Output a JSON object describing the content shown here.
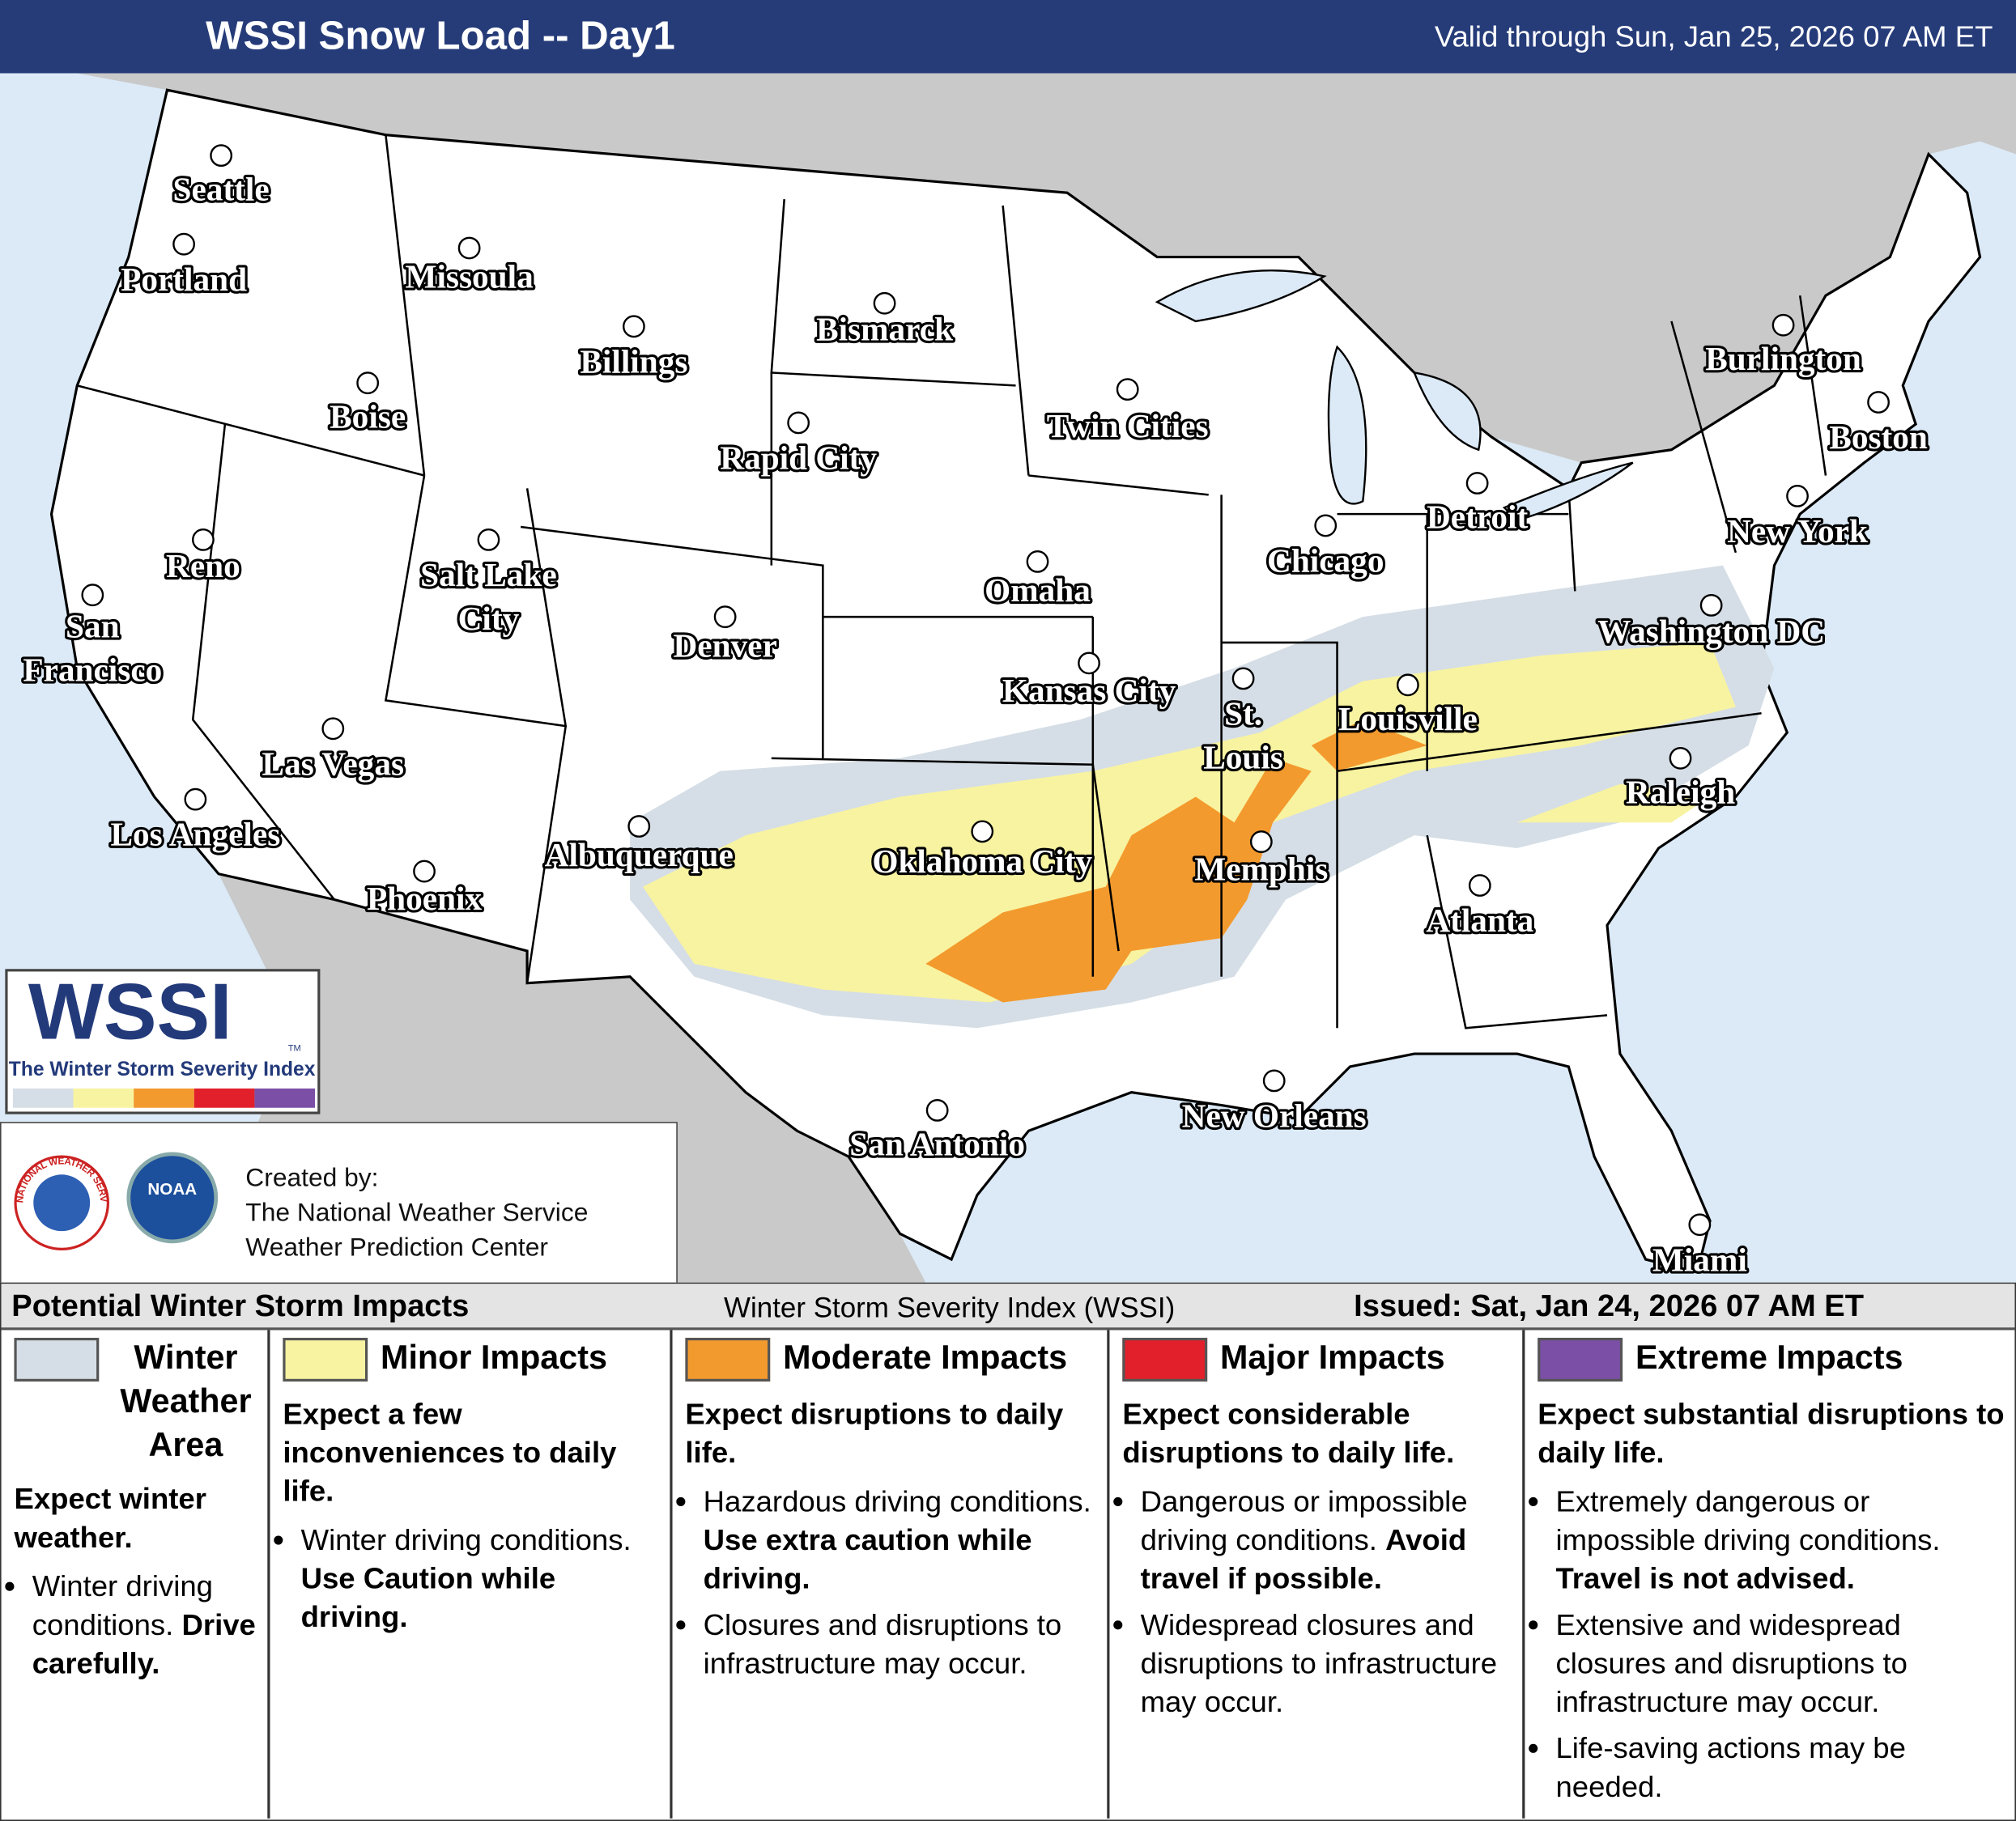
{
  "header": {
    "title": "WSSI Snow Load -- Day1",
    "valid": "Valid through Sun, Jan 25, 2026 07 AM ET"
  },
  "cities": [
    {
      "lines": [
        "Seattle"
      ]
    },
    {
      "lines": [
        "Portland"
      ]
    },
    {
      "lines": [
        "Missoula"
      ]
    },
    {
      "lines": [
        "Billings"
      ]
    },
    {
      "lines": [
        "Bismarck"
      ]
    },
    {
      "lines": [
        "Boise"
      ]
    },
    {
      "lines": [
        "Twin Cities"
      ]
    },
    {
      "lines": [
        "Rapid City"
      ]
    },
    {
      "lines": [
        "Reno"
      ]
    },
    {
      "lines": [
        "Salt Lake",
        "City"
      ]
    },
    {
      "lines": [
        "Denver"
      ]
    },
    {
      "lines": [
        "Omaha"
      ]
    },
    {
      "lines": [
        "Chicago"
      ]
    },
    {
      "lines": [
        "Detroit"
      ]
    },
    {
      "lines": [
        "Burlington"
      ]
    },
    {
      "lines": [
        "Boston"
      ]
    },
    {
      "lines": [
        "New York"
      ]
    },
    {
      "lines": [
        "Washington DC"
      ]
    },
    {
      "lines": [
        "Kansas City"
      ]
    },
    {
      "lines": [
        "St.",
        "Louis"
      ]
    },
    {
      "lines": [
        "Louisville"
      ]
    },
    {
      "lines": [
        "San",
        "Francisco"
      ]
    },
    {
      "lines": [
        "Las Vegas"
      ]
    },
    {
      "lines": [
        "Los Angeles"
      ]
    },
    {
      "lines": [
        "Albuquerque"
      ]
    },
    {
      "lines": [
        "Oklahoma City"
      ]
    },
    {
      "lines": [
        "Memphis"
      ]
    },
    {
      "lines": [
        "Raleigh"
      ]
    },
    {
      "lines": [
        "Phoenix"
      ]
    },
    {
      "lines": [
        "Atlanta"
      ]
    },
    {
      "lines": [
        "New Orleans"
      ]
    },
    {
      "lines": [
        "San Antonio"
      ]
    },
    {
      "lines": [
        "Miami"
      ]
    }
  ],
  "logo": {
    "name": "WSSI",
    "mark": "TM",
    "subtitle": "The Winter Storm Severity Index"
  },
  "credits": {
    "seal_nws": "NATIONAL WEATHER SERVICE",
    "seal_noaa": "NOAA",
    "created_by": "Created by:",
    "line1": "The National Weather Service",
    "line2": "Weather Prediction Center"
  },
  "legend": {
    "title": "Potential Winter Storm Impacts",
    "center": "Winter Storm Severity Index (WSSI)",
    "issued": "Issued: Sat, Jan 24, 2026 07 AM ET",
    "categories": [
      {
        "name": "Winter Weather Area",
        "color": "#d5dee6",
        "summary": "Expect winter weather.",
        "bullets": [
          {
            "text": "Winter driving conditions.",
            "emphasis": "Drive carefully."
          }
        ]
      },
      {
        "name": "Minor Impacts",
        "color": "#f8f3a1",
        "summary": "Expect a few inconveniences to daily life.",
        "bullets": [
          {
            "text": "Winter driving conditions.",
            "emphasis": "Use Caution while driving."
          }
        ]
      },
      {
        "name": "Moderate Impacts",
        "color": "#f39a2e",
        "summary": "Expect disruptions to daily life.",
        "bullets": [
          {
            "text": "Hazardous driving conditions.",
            "emphasis": "Use extra caution while driving."
          },
          {
            "text": "Closures and disruptions to infrastructure may occur."
          }
        ]
      },
      {
        "name": "Major Impacts",
        "color": "#e2202b",
        "summary": "Expect considerable disruptions to daily life.",
        "bullets": [
          {
            "text": "Dangerous or impossible driving conditions.",
            "emphasis": "Avoid travel if possible."
          },
          {
            "text": "Widespread closures and disruptions to infrastructure may occur."
          }
        ]
      },
      {
        "name": "Extreme Impacts",
        "color": "#7b4fa6",
        "summary": "Expect substantial disruptions to daily life.",
        "bullets": [
          {
            "text": "Extremely dangerous or impossible driving conditions.",
            "emphasis": "Travel is not advised."
          },
          {
            "text": "Extensive and widespread closures and disruptions to infrastructure may occur."
          },
          {
            "text": "Life-saving actions may be needed."
          }
        ]
      }
    ]
  }
}
